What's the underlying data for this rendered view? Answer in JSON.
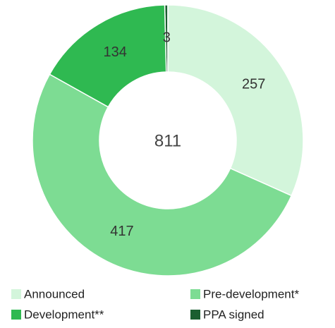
{
  "chart_data": {
    "type": "donut",
    "center_label": 811,
    "categories": [
      "Announced",
      "Pre-development*",
      "Development**",
      "PPA signed"
    ],
    "values": [
      257,
      417,
      134,
      3
    ],
    "colors": [
      "#d3f5db",
      "#7ddc93",
      "#2fb951",
      "#1b5e30"
    ]
  }
}
